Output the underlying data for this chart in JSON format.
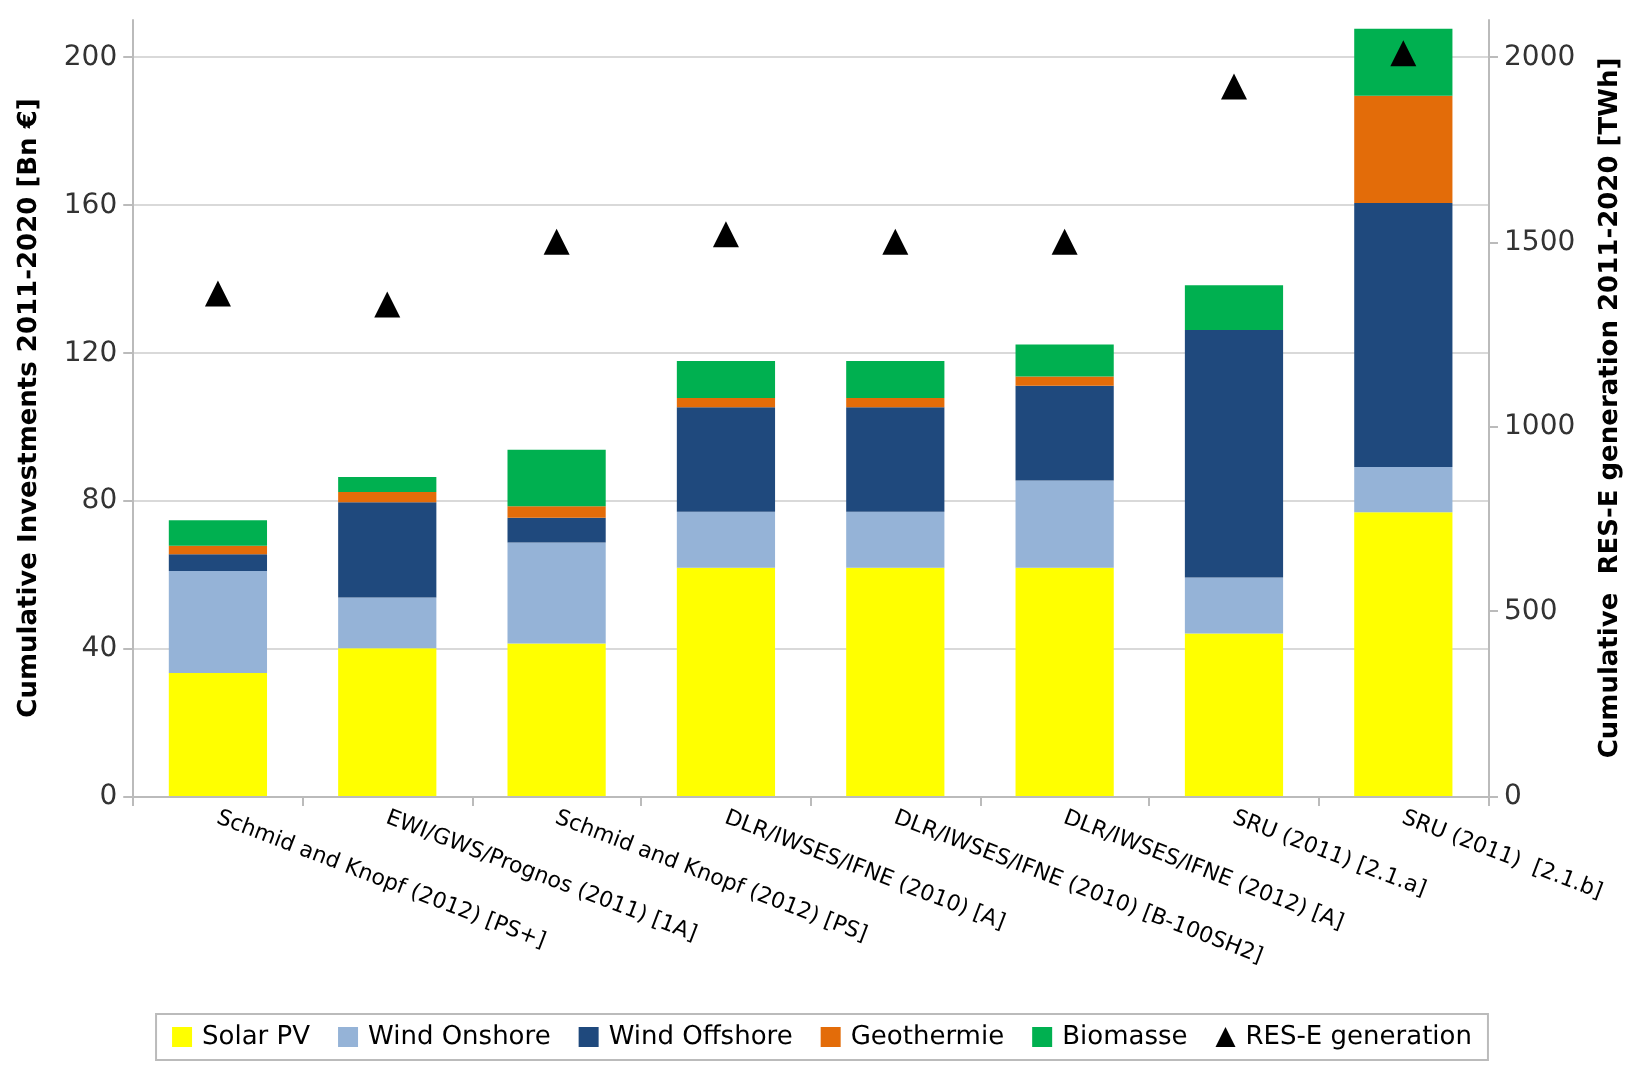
{
  "chart_data": {
    "type": "bar",
    "stacked": true,
    "ylabel": "Cumulative Investments 2011-2020 [Bn €]",
    "y2label": "Cumulative  RES-E generation 2011-2020 [TWh]",
    "categories": [
      "Schmid and Knopf (2012) [PS+]",
      "EWI/GWS/Prognos (2011) [1A]",
      "Schmid and Knopf (2012) [PS]",
      "DLR/IWSES/IFNE (2010) [A]",
      "DLR/IWSES/IFNE (2010) [B-100SH2]",
      "DLR/IWSES/IFNE (2012) [A]",
      "SRU (2011) [2.1.a]",
      "SRU (2011)  [2.1.b]"
    ],
    "series": [
      {
        "name": "Solar PV",
        "color": "#ffff00",
        "values": [
          33.3,
          40,
          41.3,
          61.8,
          61.8,
          61.8,
          44,
          76.8
        ]
      },
      {
        "name": "Wind Onshore",
        "color": "#95b3d7",
        "values": [
          27.6,
          13.7,
          27.3,
          15.1,
          15.1,
          23.6,
          15.1,
          12.2
        ]
      },
      {
        "name": "Wind Offshore",
        "color": "#1f497d",
        "values": [
          4.5,
          25.8,
          6.7,
          28.3,
          28.3,
          25.6,
          67,
          71.5
        ]
      },
      {
        "name": "Geothermie",
        "color": "#e36c09",
        "values": [
          2.3,
          2.8,
          3.1,
          2.5,
          2.5,
          2.5,
          0,
          29
        ]
      },
      {
        "name": "Biomasse",
        "color": "#00b050",
        "values": [
          6.9,
          4,
          15.3,
          10,
          10,
          8.7,
          12.1,
          18.1
        ]
      },
      {
        "name": "RES-E generation",
        "type": "scatter",
        "axis": "y2",
        "marker": "triangle",
        "color": "#000000",
        "values": [
          1360,
          1330,
          1500,
          1520,
          1500,
          1500,
          1920,
          2010
        ]
      }
    ],
    "ylim": [
      0,
      210
    ],
    "yticks": [
      0,
      40,
      80,
      120,
      160,
      200
    ],
    "y2lim": [
      0,
      2100
    ],
    "y2ticks": [
      0,
      500,
      1000,
      1500,
      2000
    ],
    "grid": "y",
    "legend": "bottom"
  }
}
